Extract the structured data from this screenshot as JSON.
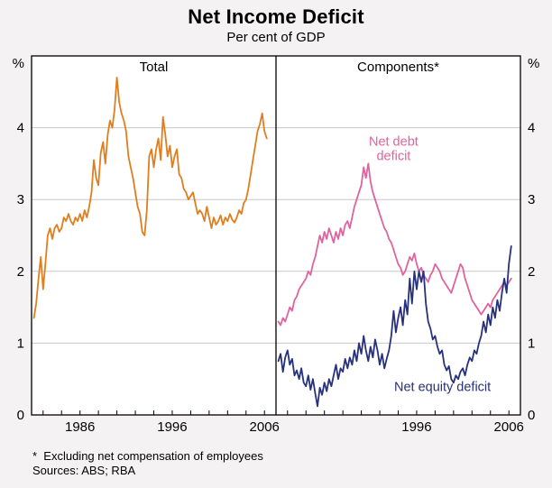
{
  "page": {
    "title": "Net Income Deficit",
    "subtitle": "Per cent of GDP"
  },
  "footnotes": {
    "asterisk": "*  Excluding net compensation of employees",
    "sources": "Sources: ABS; RBA"
  },
  "chart_data": {
    "type": "line",
    "title": "Net Income Deficit",
    "subtitle": "Per cent of GDP",
    "ylabel": "%",
    "percent_symbol": "%",
    "ylim": [
      0,
      5
    ],
    "yticks": [
      0,
      1,
      2,
      3,
      4
    ],
    "grid": true,
    "colors": {
      "total": "#E07E1F",
      "net_debt_deficit": "#DF639E",
      "net_equity_deficit": "#28317B",
      "gridline": "#c8c8c8",
      "axis": "#000000"
    },
    "minor_ticks": {
      "start": 1982,
      "step": 2,
      "end": 2006
    },
    "panels": [
      {
        "title": "Total",
        "xlim": [
          1980.75,
          2007.25
        ],
        "xticks": [
          1986,
          1996,
          2006
        ],
        "series": [
          {
            "name": "Total",
            "color": "#E07E1F",
            "x_start": 1981.0,
            "x_step": 0.25,
            "values": [
              1.35,
              1.55,
              1.9,
              2.2,
              1.75,
              2.1,
              2.5,
              2.6,
              2.45,
              2.6,
              2.65,
              2.55,
              2.6,
              2.75,
              2.7,
              2.8,
              2.7,
              2.65,
              2.75,
              2.7,
              2.8,
              2.7,
              2.85,
              2.75,
              2.9,
              3.1,
              3.55,
              3.3,
              3.2,
              3.65,
              3.8,
              3.5,
              3.9,
              4.1,
              4.0,
              4.25,
              4.7,
              4.35,
              4.2,
              4.1,
              3.95,
              3.6,
              3.45,
              3.3,
              3.1,
              2.9,
              2.8,
              2.55,
              2.5,
              2.85,
              3.6,
              3.7,
              3.45,
              3.7,
              3.85,
              3.55,
              4.15,
              3.9,
              3.6,
              3.75,
              3.45,
              3.6,
              3.7,
              3.35,
              3.3,
              3.15,
              3.1,
              3.0,
              3.05,
              3.1,
              2.95,
              2.8,
              2.85,
              2.8,
              2.7,
              2.9,
              2.75,
              2.6,
              2.75,
              2.65,
              2.7,
              2.78,
              2.65,
              2.75,
              2.7,
              2.8,
              2.72,
              2.68,
              2.75,
              2.85,
              2.8,
              2.95,
              3.0,
              3.15,
              3.35,
              3.55,
              3.75,
              3.95,
              4.05,
              4.2,
              3.95,
              3.85
            ]
          }
        ],
        "annotations": []
      },
      {
        "title": "Components*",
        "xlim": [
          1980.75,
          2007.25
        ],
        "xticks": [
          1996,
          2006
        ],
        "series": [
          {
            "name": "Net debt deficit",
            "color": "#DF639E",
            "x_start": 1981.0,
            "x_step": 0.25,
            "values": [
              1.3,
              1.25,
              1.35,
              1.3,
              1.4,
              1.5,
              1.45,
              1.6,
              1.65,
              1.75,
              1.8,
              1.85,
              1.9,
              2.0,
              1.95,
              2.1,
              2.2,
              2.35,
              2.5,
              2.4,
              2.55,
              2.45,
              2.6,
              2.5,
              2.4,
              2.55,
              2.45,
              2.6,
              2.5,
              2.65,
              2.7,
              2.6,
              2.75,
              2.9,
              3.0,
              3.1,
              3.2,
              3.45,
              3.3,
              3.5,
              3.25,
              3.1,
              3.0,
              2.9,
              2.8,
              2.7,
              2.6,
              2.55,
              2.45,
              2.4,
              2.3,
              2.2,
              2.1,
              2.05,
              1.95,
              2.0,
              2.1,
              2.2,
              2.15,
              2.25,
              2.1,
              2.0,
              2.05,
              1.95,
              1.9,
              1.85,
              1.95,
              2.0,
              2.1,
              2.05,
              2.0,
              1.9,
              1.85,
              1.8,
              1.75,
              1.7,
              1.8,
              1.9,
              2.0,
              2.1,
              2.05,
              1.9,
              1.8,
              1.7,
              1.6,
              1.55,
              1.5,
              1.45,
              1.4,
              1.45,
              1.5,
              1.55,
              1.5,
              1.6,
              1.65,
              1.7,
              1.75,
              1.8,
              1.85,
              1.8,
              1.85,
              1.9
            ]
          },
          {
            "name": "Net equity deficit",
            "color": "#28317B",
            "x_start": 1981.0,
            "x_step": 0.25,
            "values": [
              0.75,
              0.85,
              0.6,
              0.8,
              0.9,
              0.7,
              0.78,
              0.55,
              0.62,
              0.5,
              0.65,
              0.45,
              0.4,
              0.55,
              0.35,
              0.5,
              0.3,
              0.12,
              0.38,
              0.28,
              0.45,
              0.33,
              0.5,
              0.4,
              0.55,
              0.7,
              0.5,
              0.65,
              0.6,
              0.78,
              0.65,
              0.8,
              0.7,
              0.9,
              0.75,
              1.0,
              0.85,
              1.1,
              0.9,
              0.75,
              0.95,
              0.8,
              1.05,
              0.9,
              0.7,
              0.85,
              0.65,
              0.78,
              0.9,
              1.1,
              1.45,
              1.15,
              1.35,
              1.5,
              1.25,
              1.6,
              1.4,
              1.9,
              1.55,
              2.0,
              1.75,
              2.0,
              1.85,
              2.0,
              1.55,
              1.3,
              1.2,
              1.05,
              1.1,
              0.95,
              0.85,
              0.9,
              0.7,
              0.62,
              0.68,
              0.5,
              0.45,
              0.55,
              0.5,
              0.6,
              0.65,
              0.55,
              0.7,
              0.8,
              0.75,
              0.9,
              0.85,
              1.0,
              1.1,
              1.3,
              1.15,
              1.4,
              1.25,
              1.5,
              1.35,
              1.6,
              1.45,
              1.7,
              1.9,
              1.7,
              2.1,
              2.35
            ]
          }
        ],
        "annotations": [
          {
            "lines": [
              "Net debt",
              "deficit"
            ],
            "x": 1993.5,
            "y": 3.75,
            "color": "#DF639E"
          },
          {
            "lines": [
              "Net equity deficit"
            ],
            "x": 1998.8,
            "y": 0.33,
            "color": "#28317B"
          }
        ]
      }
    ]
  }
}
